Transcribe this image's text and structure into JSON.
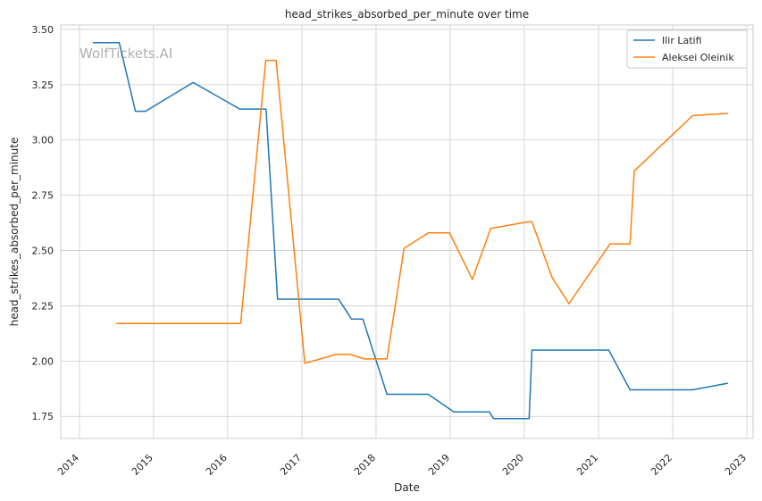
{
  "chart_data": {
    "type": "line",
    "title": "head_strikes_absorbed_per_minute over time",
    "xlabel": "Date",
    "ylabel": "head_strikes_absorbed_per_minute",
    "watermark": "WolfTickets.AI",
    "xlim": [
      "2013-10-01",
      "2023-02-01"
    ],
    "ylim": [
      1.65,
      3.52
    ],
    "x_ticks": [
      "2014",
      "2015",
      "2016",
      "2017",
      "2018",
      "2019",
      "2020",
      "2021",
      "2022",
      "2023"
    ],
    "y_ticks": [
      "1.75",
      "2.00",
      "2.25",
      "2.50",
      "2.75",
      "3.00",
      "3.25",
      "3.50"
    ],
    "grid": true,
    "legend_position": "top-right",
    "series": [
      {
        "name": "Ilir Latifi",
        "color": "#1f77b4",
        "points": [
          [
            "2014-03-08",
            3.44
          ],
          [
            "2014-07-16",
            3.44
          ],
          [
            "2014-10-04",
            3.13
          ],
          [
            "2014-11-22",
            3.13
          ],
          [
            "2015-07-15",
            3.26
          ],
          [
            "2016-03-01",
            3.14
          ],
          [
            "2016-07-08",
            3.14
          ],
          [
            "2016-09-03",
            2.28
          ],
          [
            "2017-07-01",
            2.28
          ],
          [
            "2017-09-02",
            2.19
          ],
          [
            "2017-10-28",
            2.19
          ],
          [
            "2018-02-24",
            1.85
          ],
          [
            "2018-09-15",
            1.85
          ],
          [
            "2019-01-19",
            1.77
          ],
          [
            "2019-07-13",
            1.77
          ],
          [
            "2019-08-03",
            1.74
          ],
          [
            "2020-01-25",
            1.74
          ],
          [
            "2020-02-08",
            2.05
          ],
          [
            "2021-02-20",
            2.05
          ],
          [
            "2021-06-05",
            1.87
          ],
          [
            "2022-04-09",
            1.87
          ],
          [
            "2022-09-30",
            1.9
          ]
        ]
      },
      {
        "name": "Aleksei Oleinik",
        "color": "#ff7f0e",
        "points": [
          [
            "2014-07-01",
            2.17
          ],
          [
            "2016-03-05",
            2.17
          ],
          [
            "2016-07-07",
            3.36
          ],
          [
            "2016-08-27",
            3.36
          ],
          [
            "2017-01-15",
            1.99
          ],
          [
            "2017-06-17",
            2.03
          ],
          [
            "2017-08-26",
            2.03
          ],
          [
            "2017-11-04",
            2.01
          ],
          [
            "2018-02-24",
            2.01
          ],
          [
            "2018-05-19",
            2.51
          ],
          [
            "2018-09-15",
            2.58
          ],
          [
            "2018-12-29",
            2.58
          ],
          [
            "2019-04-20",
            2.37
          ],
          [
            "2019-07-20",
            2.6
          ],
          [
            "2020-01-20",
            2.63
          ],
          [
            "2020-02-08",
            2.63
          ],
          [
            "2020-05-16",
            2.38
          ],
          [
            "2020-08-08",
            2.26
          ],
          [
            "2021-02-27",
            2.53
          ],
          [
            "2021-06-05",
            2.53
          ],
          [
            "2021-06-26",
            2.86
          ],
          [
            "2022-04-09",
            3.11
          ],
          [
            "2022-09-30",
            3.12
          ]
        ]
      }
    ]
  }
}
